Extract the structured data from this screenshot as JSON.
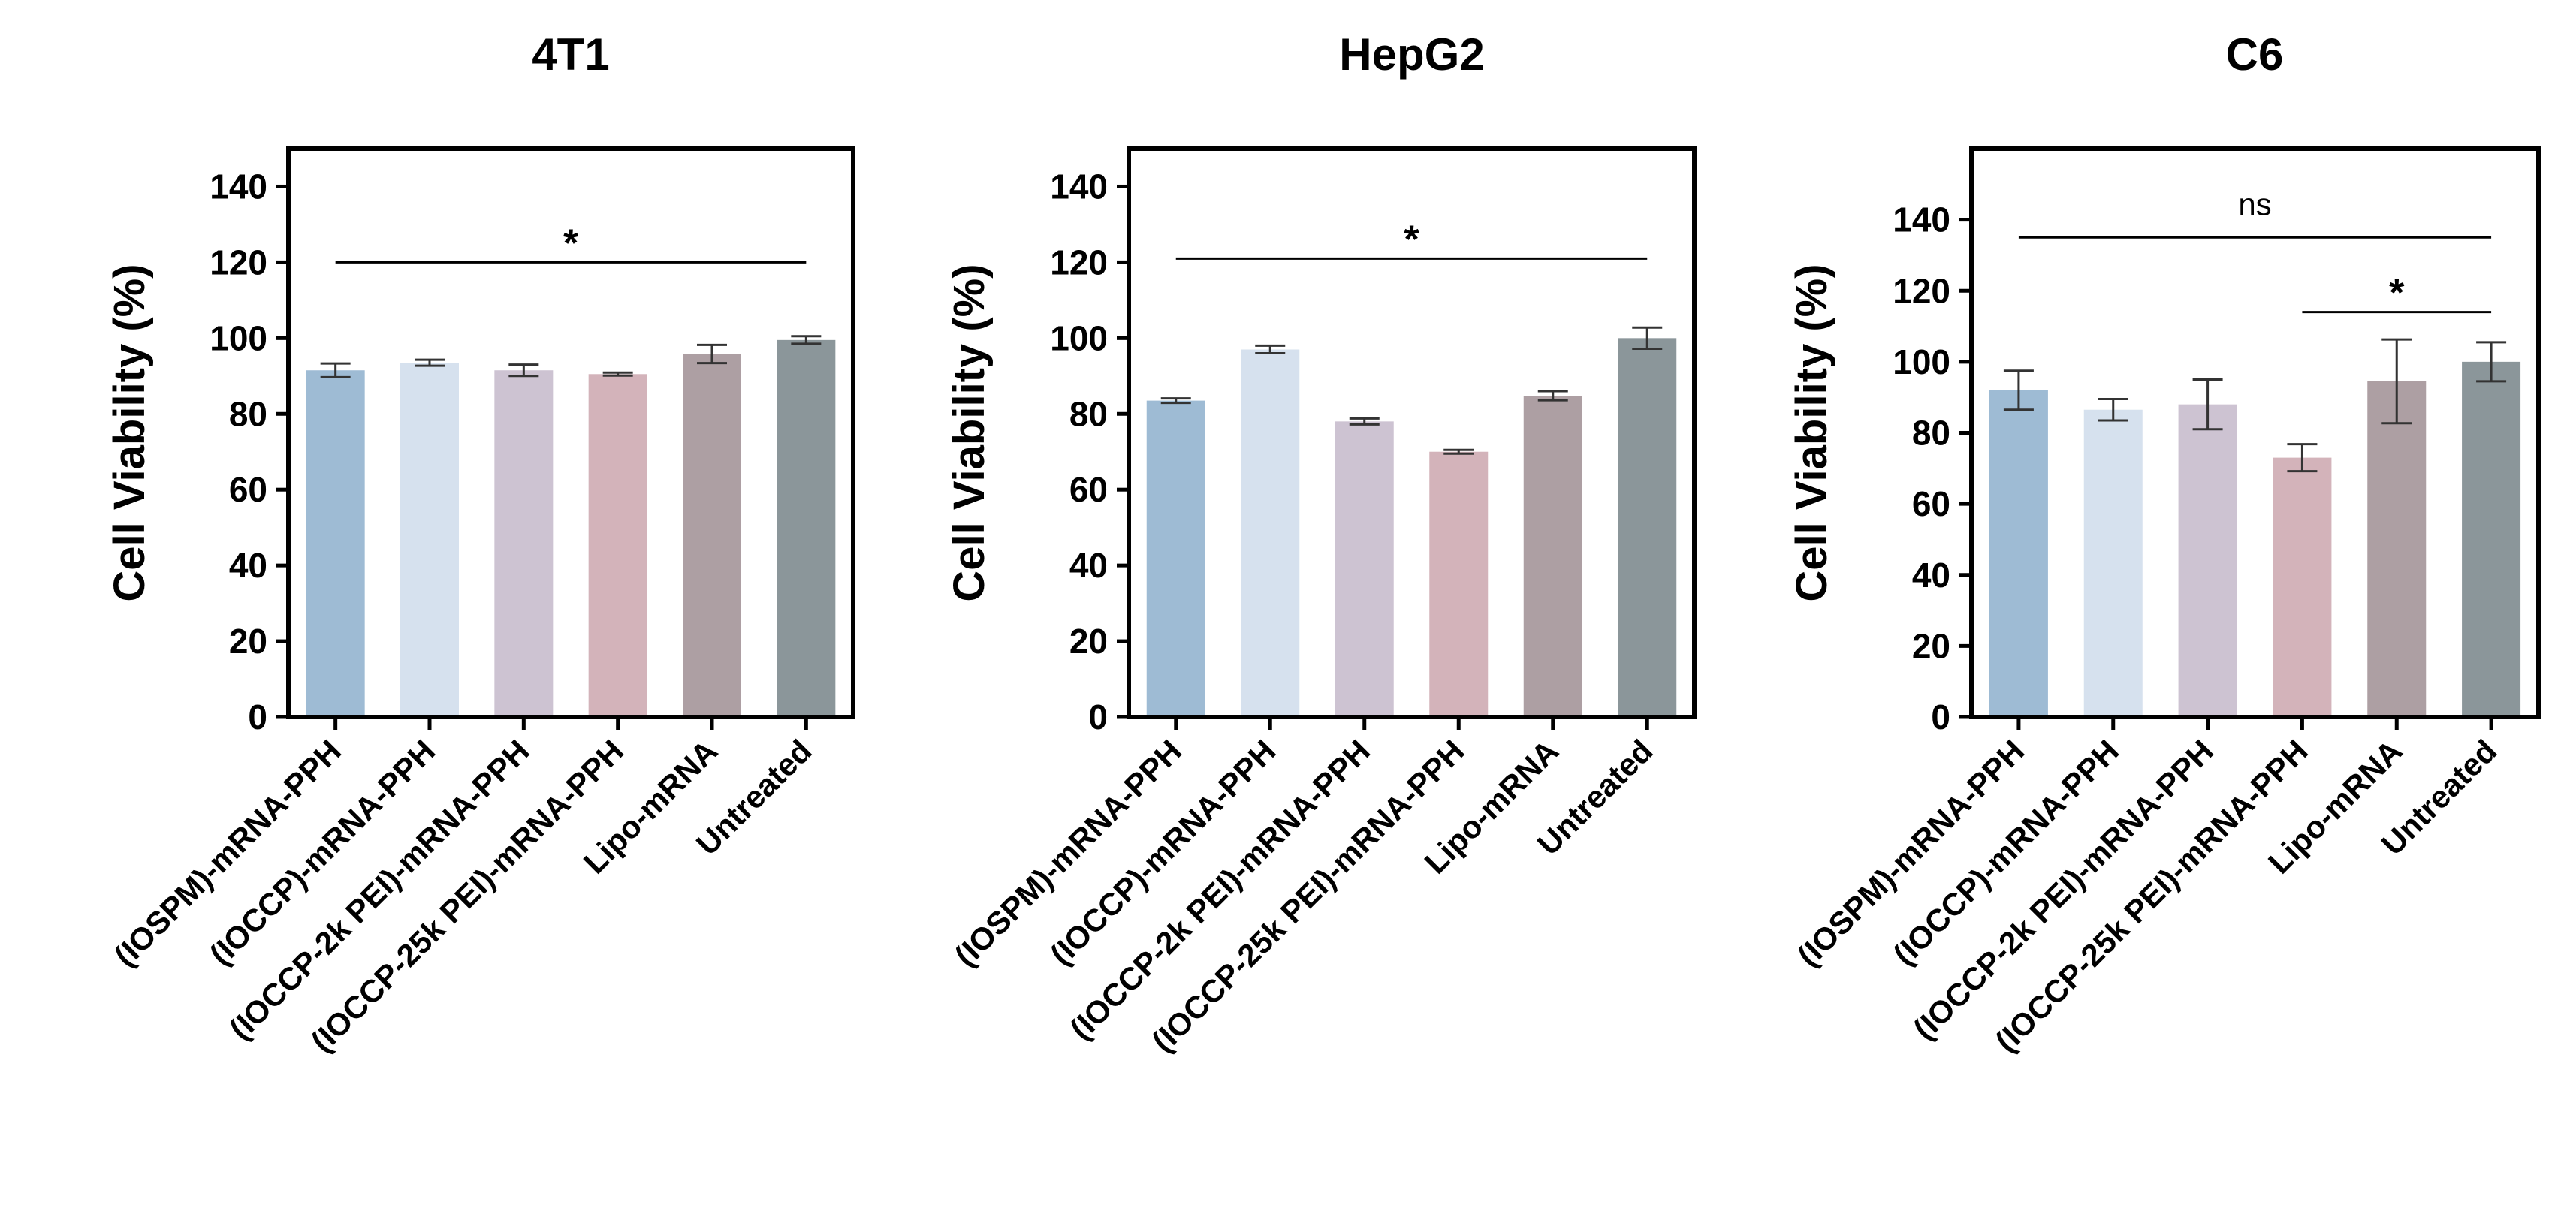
{
  "chart_data": [
    {
      "type": "bar",
      "title": "4T1",
      "ylabel": "Cell Viability (%)",
      "xlabel": "",
      "ylim": [
        0,
        150
      ],
      "yticks": [
        0,
        20,
        40,
        60,
        80,
        100,
        120,
        140
      ],
      "categories": [
        "(IOSPM)-mRNA-PPH",
        "(IOCCP)-mRNA-PPH",
        "(IOCCP-2k PEI)-mRNA-PPH",
        "(IOCCP-25k PEI)-mRNA-PPH",
        "Lipo-mRNA",
        "Untreated"
      ],
      "values": [
        91.5,
        93.5,
        91.5,
        90.5,
        95.8,
        99.5
      ],
      "errors": [
        1.8,
        0.8,
        1.5,
        0.4,
        2.4,
        1.0
      ],
      "colors": [
        "#9ebbd4",
        "#d6e1ee",
        "#cdc3d2",
        "#d3b3ba",
        "#ad9fa3",
        "#8b969a"
      ],
      "annotations": [
        {
          "text": "*",
          "y": 120,
          "from": 0,
          "to": 5
        }
      ]
    },
    {
      "type": "bar",
      "title": "HepG2",
      "ylabel": "Cell Viability (%)",
      "xlabel": "",
      "ylim": [
        0,
        150
      ],
      "yticks": [
        0,
        20,
        40,
        60,
        80,
        100,
        120,
        140
      ],
      "categories": [
        "(IOSPM)-mRNA-PPH",
        "(IOCCP)-mRNA-PPH",
        "(IOCCP-2k PEI)-mRNA-PPH",
        "(IOCCP-25k PEI)-mRNA-PPH",
        "Lipo-mRNA",
        "Untreated"
      ],
      "values": [
        83.5,
        97,
        78,
        70,
        84.8,
        100
      ],
      "errors": [
        0.6,
        1.0,
        0.8,
        0.5,
        1.2,
        2.8
      ],
      "colors": [
        "#9ebbd4",
        "#d6e1ee",
        "#cdc3d2",
        "#d3b3ba",
        "#ad9fa3",
        "#8b969a"
      ],
      "annotations": [
        {
          "text": "*",
          "y": 121,
          "from": 0,
          "to": 5
        }
      ]
    },
    {
      "type": "bar",
      "title": "C6",
      "ylabel": "Cell Viability (%)",
      "xlabel": "",
      "ylim": [
        0,
        160
      ],
      "yticks": [
        0,
        20,
        40,
        60,
        80,
        100,
        120,
        140
      ],
      "categories": [
        "(IOSPM)-mRNA-PPH",
        "(IOCCP)-mRNA-PPH",
        "(IOCCP-2k PEI)-mRNA-PPH",
        "(IOCCP-25k PEI)-mRNA-PPH",
        "Lipo-mRNA",
        "Untreated"
      ],
      "values": [
        92,
        86.5,
        88,
        73,
        94.5,
        100
      ],
      "errors": [
        5.5,
        3.0,
        7.0,
        3.8,
        11.8,
        5.5
      ],
      "colors": [
        "#9ebbd4",
        "#d6e1ee",
        "#cdc3d2",
        "#d3b3ba",
        "#ad9fa3",
        "#8b969a"
      ],
      "annotations": [
        {
          "text": "ns",
          "y": 135,
          "from": 0,
          "to": 5
        },
        {
          "text": "*",
          "y": 114,
          "from": 3,
          "to": 5
        }
      ]
    }
  ]
}
